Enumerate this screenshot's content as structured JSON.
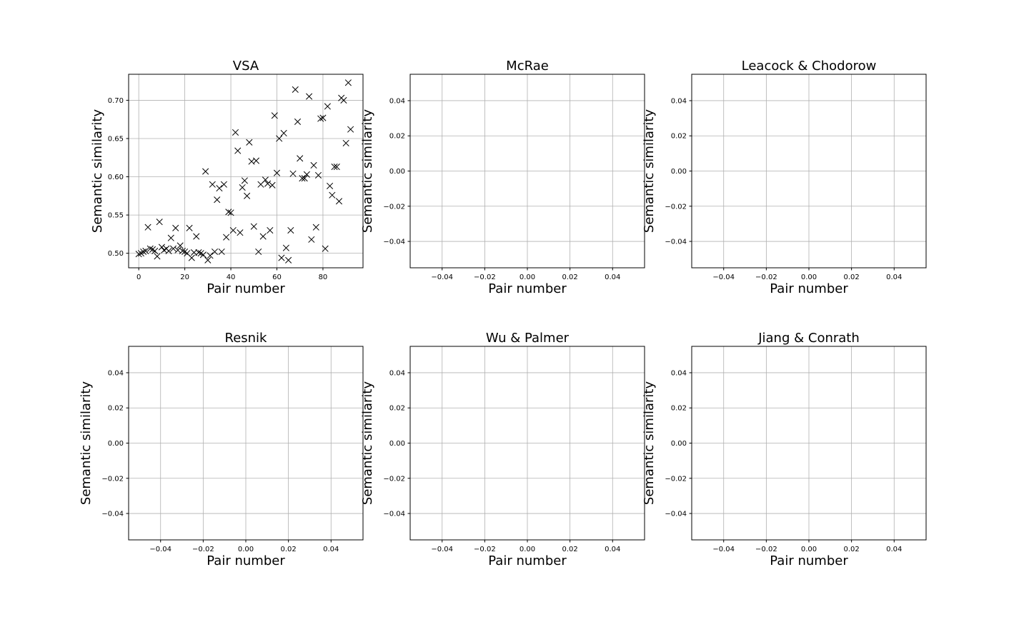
{
  "chart_data": [
    {
      "type": "scatter",
      "title": "VSA",
      "xlabel": "Pair number",
      "ylabel": "Semantic similarity",
      "marker": "x",
      "color": "#000000",
      "grid": true,
      "xlim": [
        -4.4,
        97.4
      ],
      "ylim": [
        0.481,
        0.734
      ],
      "xticks": [
        0,
        20,
        40,
        60,
        80
      ],
      "xtick_labels": [
        "0",
        "20",
        "40",
        "60",
        "80"
      ],
      "yticks": [
        0.5,
        0.55,
        0.6,
        0.65,
        0.7
      ],
      "ytick_labels": [
        "0.50",
        "0.55",
        "0.60",
        "0.65",
        "0.70"
      ],
      "x": [
        0,
        1,
        2,
        3,
        4,
        5,
        6,
        7,
        8,
        9,
        10,
        11,
        12,
        13,
        14,
        15,
        16,
        17,
        18,
        19,
        20,
        21,
        22,
        23,
        24,
        25,
        26,
        27,
        28,
        29,
        30,
        31,
        32,
        33,
        34,
        35,
        36,
        37,
        38,
        39,
        40,
        41,
        42,
        43,
        44,
        45,
        46,
        47,
        48,
        49,
        50,
        51,
        52,
        53,
        54,
        55,
        56,
        57,
        58,
        59,
        60,
        61,
        62,
        63,
        64,
        65,
        66,
        67,
        68,
        69,
        70,
        71,
        72,
        73,
        74,
        75,
        76,
        77,
        78,
        79,
        80,
        81,
        82,
        83,
        84,
        85,
        86,
        87,
        88,
        89,
        90,
        91,
        92
      ],
      "y": [
        0.499,
        0.5,
        0.502,
        0.503,
        0.534,
        0.506,
        0.505,
        0.503,
        0.496,
        0.541,
        0.508,
        0.504,
        0.506,
        0.503,
        0.52,
        0.506,
        0.533,
        0.504,
        0.51,
        0.503,
        0.502,
        0.5,
        0.533,
        0.494,
        0.501,
        0.522,
        0.501,
        0.5,
        0.498,
        0.607,
        0.491,
        0.497,
        0.59,
        0.502,
        0.57,
        0.585,
        0.502,
        0.59,
        0.521,
        0.554,
        0.553,
        0.53,
        0.658,
        0.634,
        0.527,
        0.586,
        0.595,
        0.575,
        0.645,
        0.62,
        0.535,
        0.621,
        0.502,
        0.59,
        0.522,
        0.596,
        0.591,
        0.53,
        0.589,
        0.68,
        0.605,
        0.65,
        0.494,
        0.657,
        0.507,
        0.491,
        0.53,
        0.604,
        0.714,
        0.672,
        0.624,
        0.598,
        0.598,
        0.603,
        0.705,
        0.518,
        0.615,
        0.534,
        0.602,
        0.676,
        0.677,
        0.506,
        0.692,
        0.588,
        0.576,
        0.613,
        0.613,
        0.568,
        0.703,
        0.7,
        0.644,
        0.723,
        0.662
      ]
    },
    {
      "type": "scatter",
      "title": "McRae",
      "xlabel": "Pair number",
      "ylabel": "Semantic similarity",
      "grid": true,
      "xlim": [
        -0.055,
        0.055
      ],
      "ylim": [
        -0.055,
        0.055
      ],
      "xticks": [
        -0.04,
        -0.02,
        0.0,
        0.02,
        0.04
      ],
      "xtick_labels": [
        "−0.04",
        "−0.02",
        "0.00",
        "0.02",
        "0.04"
      ],
      "yticks": [
        -0.04,
        -0.02,
        0.0,
        0.02,
        0.04
      ],
      "ytick_labels": [
        "−0.04",
        "−0.02",
        "0.00",
        "0.02",
        "0.04"
      ],
      "x": [],
      "y": []
    },
    {
      "type": "scatter",
      "title": "Leacock & Chodorow",
      "xlabel": "Pair number",
      "ylabel": "Semantic similarity",
      "grid": true,
      "xlim": [
        -0.055,
        0.055
      ],
      "ylim": [
        -0.055,
        0.055
      ],
      "xticks": [
        -0.04,
        -0.02,
        0.0,
        0.02,
        0.04
      ],
      "xtick_labels": [
        "−0.04",
        "−0.02",
        "0.00",
        "0.02",
        "0.04"
      ],
      "yticks": [
        -0.04,
        -0.02,
        0.0,
        0.02,
        0.04
      ],
      "ytick_labels": [
        "−0.04",
        "−0.02",
        "0.00",
        "0.02",
        "0.04"
      ],
      "x": [],
      "y": []
    },
    {
      "type": "scatter",
      "title": "Resnik",
      "xlabel": "Pair number",
      "ylabel": "Semantic similarity",
      "grid": true,
      "xlim": [
        -0.055,
        0.055
      ],
      "ylim": [
        -0.055,
        0.055
      ],
      "xticks": [
        -0.04,
        -0.02,
        0.0,
        0.02,
        0.04
      ],
      "xtick_labels": [
        "−0.04",
        "−0.02",
        "0.00",
        "0.02",
        "0.04"
      ],
      "yticks": [
        -0.04,
        -0.02,
        0.0,
        0.02,
        0.04
      ],
      "ytick_labels": [
        "−0.04",
        "−0.02",
        "0.00",
        "0.02",
        "0.04"
      ],
      "x": [],
      "y": []
    },
    {
      "type": "scatter",
      "title": "Wu & Palmer",
      "xlabel": "Pair number",
      "ylabel": "Semantic similarity",
      "grid": true,
      "xlim": [
        -0.055,
        0.055
      ],
      "ylim": [
        -0.055,
        0.055
      ],
      "xticks": [
        -0.04,
        -0.02,
        0.0,
        0.02,
        0.04
      ],
      "xtick_labels": [
        "−0.04",
        "−0.02",
        "0.00",
        "0.02",
        "0.04"
      ],
      "yticks": [
        -0.04,
        -0.02,
        0.0,
        0.02,
        0.04
      ],
      "ytick_labels": [
        "−0.04",
        "−0.02",
        "0.00",
        "0.02",
        "0.04"
      ],
      "x": [],
      "y": []
    },
    {
      "type": "scatter",
      "title": "Jiang & Conrath",
      "xlabel": "Pair number",
      "ylabel": "Semantic similarity",
      "grid": true,
      "xlim": [
        -0.055,
        0.055
      ],
      "ylim": [
        -0.055,
        0.055
      ],
      "xticks": [
        -0.04,
        -0.02,
        0.0,
        0.02,
        0.04
      ],
      "xtick_labels": [
        "−0.04",
        "−0.02",
        "0.00",
        "0.02",
        "0.04"
      ],
      "yticks": [
        -0.04,
        -0.02,
        0.0,
        0.02,
        0.04
      ],
      "ytick_labels": [
        "−0.04",
        "−0.02",
        "0.00",
        "0.02",
        "0.04"
      ],
      "x": [],
      "y": []
    }
  ]
}
